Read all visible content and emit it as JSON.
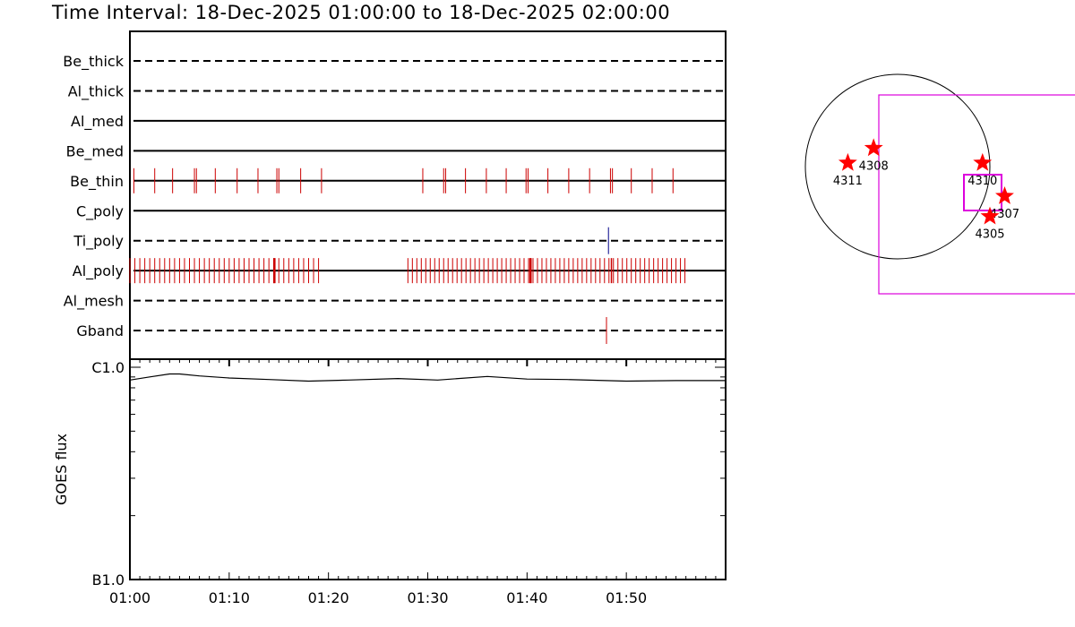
{
  "title": "Time Interval: 18-Dec-2025 01:00:00 to 18-Dec-2025 02:00:00",
  "chart_data": [
    {
      "type": "timeline",
      "x_unit": "minutes after 01:00",
      "xlim": [
        0,
        60
      ],
      "x_ticks": [
        "01:00",
        "01:10",
        "01:20",
        "01:30",
        "01:40",
        "01:50"
      ],
      "x_tick_values": [
        0,
        10,
        20,
        30,
        40,
        50
      ],
      "rows": [
        {
          "label": "Be_thick",
          "style": "dashed",
          "events": []
        },
        {
          "label": "Al_thick",
          "style": "dashed",
          "events": []
        },
        {
          "label": "Al_med",
          "style": "solid",
          "events": []
        },
        {
          "label": "Be_med",
          "style": "solid",
          "events": []
        },
        {
          "label": "Be_thin",
          "style": "solid",
          "color": "#cc0000",
          "events": [
            0.4,
            2.5,
            4.3,
            6.5,
            6.7,
            8.6,
            10.8,
            12.9,
            14.8,
            15.0,
            17.2,
            19.3,
            29.5,
            31.6,
            31.8,
            33.8,
            35.9,
            37.9,
            39.9,
            40.1,
            42.1,
            44.2,
            46.3,
            48.4,
            48.6,
            50.5,
            52.6,
            54.7
          ]
        },
        {
          "label": "C_poly",
          "style": "solid",
          "events": []
        },
        {
          "label": "Ti_poly",
          "style": "dashed",
          "color": "#000088",
          "events": [
            48.2
          ]
        },
        {
          "label": "Al_poly",
          "style": "solid",
          "color": "#cc0000",
          "event_ranges": [
            [
              0.0,
              19.3,
              0.5
            ],
            [
              28.0,
              56.2,
              0.45
            ]
          ],
          "events_dense": [
            14.5,
            14.6,
            40.3,
            40.4,
            48.5
          ]
        },
        {
          "label": "Al_mesh",
          "style": "dashed",
          "events": []
        },
        {
          "label": "Gband",
          "style": "dashed",
          "color": "#cc0000",
          "events": [
            48.0
          ]
        }
      ]
    },
    {
      "type": "line",
      "ylabel": "GOES flux",
      "y_scale": "log",
      "y_ticks": [
        "C1.0",
        "B1.0"
      ],
      "y_tick_values": [
        1e-06,
        1e-07
      ],
      "ylim": [
        1e-07,
        1e-06
      ],
      "x_unit": "minutes after 01:00",
      "xlim": [
        0,
        60
      ],
      "x": [
        0,
        2,
        4,
        5,
        7,
        10,
        14,
        18,
        22,
        27,
        31,
        36,
        40,
        44,
        50,
        55,
        60
      ],
      "y": [
        8.7e-07,
        9e-07,
        9.3e-07,
        9.3e-07,
        9.1e-07,
        8.9e-07,
        8.75e-07,
        8.6e-07,
        8.7e-07,
        8.85e-07,
        8.7e-07,
        9.05e-07,
        8.8e-07,
        8.75e-07,
        8.6e-07,
        8.65e-07,
        8.65e-07
      ]
    },
    {
      "type": "scatter",
      "points": [
        {
          "label": "4311",
          "x": 0.23,
          "y": 0.48
        },
        {
          "label": "4308",
          "x": 0.37,
          "y": 0.4
        },
        {
          "label": "4310",
          "x": 0.96,
          "y": 0.48
        },
        {
          "label": "4307",
          "x": 1.08,
          "y": 0.66
        },
        {
          "label": "4305",
          "x": 1.0,
          "y": 0.77
        }
      ],
      "marker_color": "#ff0000",
      "circle_color": "#000000",
      "box_color": "#dd00dd"
    }
  ]
}
